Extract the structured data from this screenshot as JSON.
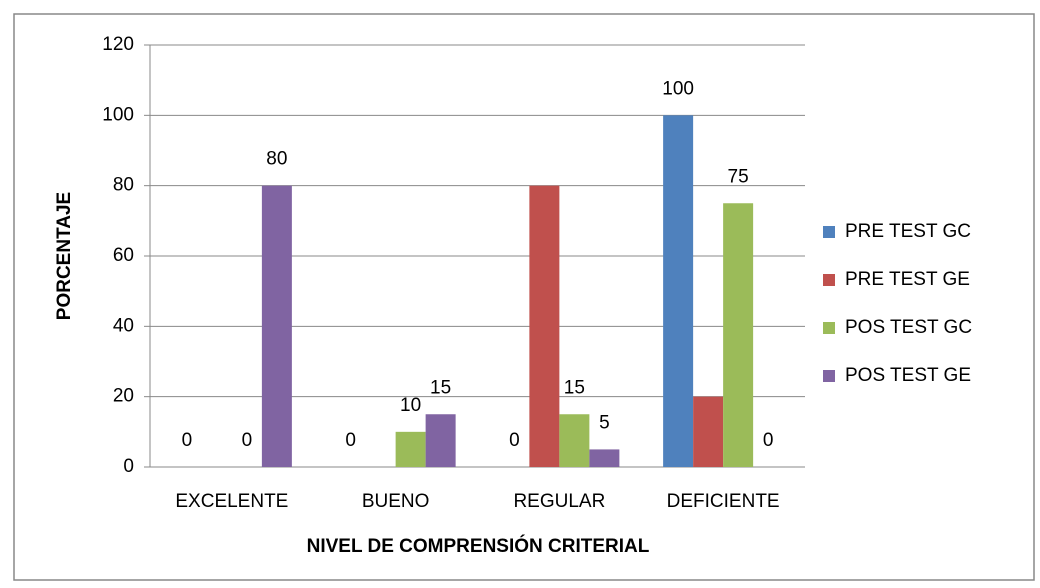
{
  "chart_data": {
    "type": "bar",
    "x_label": "NIVEL DE COMPRENSIÓN CRITERIAL",
    "y_label": "PORCENTAJE",
    "categories": [
      "EXCELENTE",
      "BUENO",
      "REGULAR",
      "DEFICIENTE"
    ],
    "series": [
      {
        "name": "PRE TEST GC",
        "color": "#4f81bd",
        "values": [
          0,
          0,
          0,
          100
        ],
        "data_labels": true
      },
      {
        "name": "PRE TEST GE",
        "color": "#c0504d",
        "values": [
          0,
          0,
          80,
          20
        ],
        "data_labels": false
      },
      {
        "name": "POS TEST GC",
        "color": "#9bbb59",
        "values": [
          0,
          10,
          15,
          75
        ],
        "data_labels": true
      },
      {
        "name": "POS TEST GE",
        "color": "#8064a2",
        "values": [
          80,
          15,
          5,
          0
        ],
        "data_labels": true
      }
    ],
    "ylim": [
      0,
      120
    ],
    "yticks": [
      0,
      20,
      40,
      60,
      80,
      100,
      120
    ],
    "grid": true,
    "legend": "right"
  }
}
